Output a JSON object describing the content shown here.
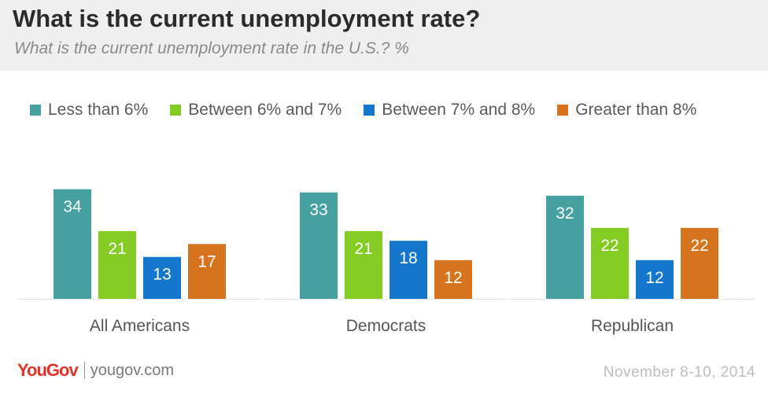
{
  "chart_data": {
    "type": "bar",
    "title": "What is the current unemployment rate?",
    "subtitle": "What is the current unemployment rate in the U.S.? %",
    "categories": [
      "All Americans",
      "Democrats",
      "Republican"
    ],
    "series": [
      {
        "name": "Less than 6%",
        "color": "#46a0a0",
        "values": [
          34,
          33,
          32
        ]
      },
      {
        "name": "Between 6% and 7%",
        "color": "#84cc24",
        "values": [
          21,
          21,
          22
        ]
      },
      {
        "name": "Between 7% and 8%",
        "color": "#1577cc",
        "values": [
          13,
          18,
          12
        ]
      },
      {
        "name": "Greater than 8%",
        "color": "#d5731f",
        "values": [
          17,
          12,
          22
        ]
      }
    ],
    "ylim": [
      0,
      40
    ],
    "grid": false,
    "legend": "top",
    "data_labels": "inside-top"
  },
  "footer": {
    "logo": "YouGov",
    "url": "yougov.com",
    "date": "November 8-10, 2014"
  }
}
